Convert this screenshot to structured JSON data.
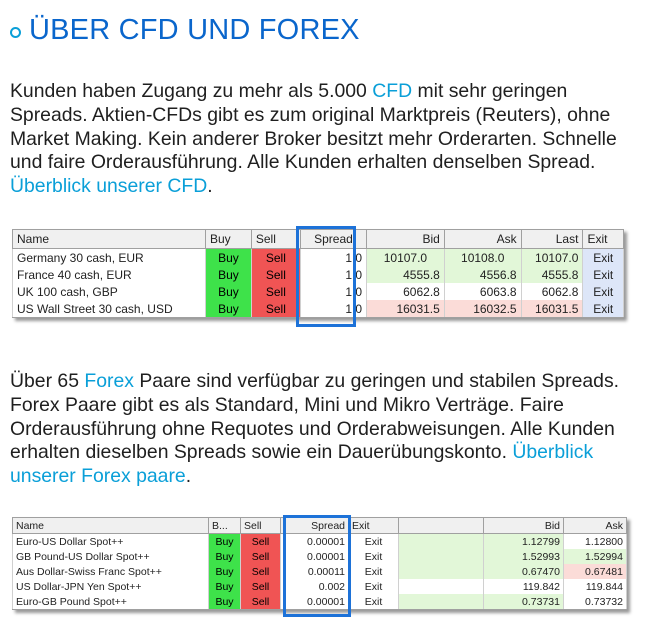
{
  "heading": "ÜBER CFD UND FOREX",
  "para1": {
    "text_before": "Kunden haben Zugang zu mehr als 5.000 ",
    "link1": "CFD",
    "text_middle": " mit sehr geringen Spreads. Aktien-CFDs gibt es zum original Marktpreis (Reuters), ohne Market Making. Kein anderer Broker besitzt mehr Orderarten. Schnelle und faire Orderausführung. Alle Kunden erhalten denselben Spread. ",
    "link2": "Überblick unserer CFD",
    "text_after": "."
  },
  "table1": {
    "headers": [
      "Name",
      "Buy",
      "Sell",
      "Spread",
      "Bid",
      "Ask",
      "Last",
      "Exit"
    ],
    "rows": [
      {
        "name": "Germany 30 cash, EUR",
        "buy": "Buy",
        "sell": "Sell",
        "spread": "1.0",
        "bid": "10107.0",
        "ask": "10108.0",
        "last": "10107.0",
        "exit": "Exit",
        "trend": "up"
      },
      {
        "name": "France 40 cash, EUR",
        "buy": "Buy",
        "sell": "Sell",
        "spread": "1.0",
        "bid": "4555.8",
        "ask": "4556.8",
        "last": "4555.8",
        "exit": "Exit",
        "trend": "up"
      },
      {
        "name": "UK 100 cash, GBP",
        "buy": "Buy",
        "sell": "Sell",
        "spread": "1.0",
        "bid": "6062.8",
        "ask": "6063.8",
        "last": "6062.8",
        "exit": "Exit",
        "trend": "neutral"
      },
      {
        "name": "US Wall Street 30 cash, USD",
        "buy": "Buy",
        "sell": "Sell",
        "spread": "1.0",
        "bid": "16031.5",
        "ask": "16032.5",
        "last": "16031.5",
        "exit": "Exit",
        "trend": "down"
      }
    ]
  },
  "para2": {
    "text_before": "Über 65 ",
    "link1": "Forex",
    "text_middle": " Paare sind verfügbar zu geringen und stabilen Spreads. Forex Paare gibt es als Standard, Mini und Mikro Verträge. Faire Orderausführung ohne Requotes und Orderabweisungen. Alle Kunden erhalten dieselben Spreads sowie ein Dauerübungskonto. ",
    "link2": "Überblick unserer Forex paare",
    "text_after": "."
  },
  "table2": {
    "headers": [
      "Name",
      "B...",
      "Sell",
      "Spread",
      "Exit",
      "",
      "Bid",
      "Ask"
    ],
    "rows": [
      {
        "name": "Euro-US Dollar Spot++",
        "buy": "Buy",
        "sell": "Sell",
        "spread": "0.00001",
        "exit": "Exit",
        "bid": "1.12799",
        "ask": "1.12800",
        "bid_trend": "up",
        "ask_trend": "neutral"
      },
      {
        "name": "GB Pound-US Dollar Spot++",
        "buy": "Buy",
        "sell": "Sell",
        "spread": "0.00001",
        "exit": "Exit",
        "bid": "1.52993",
        "ask": "1.52994",
        "bid_trend": "up",
        "ask_trend": "up"
      },
      {
        "name": "Aus Dollar-Swiss Franc Spot++",
        "buy": "Buy",
        "sell": "Sell",
        "spread": "0.00011",
        "exit": "Exit",
        "bid": "0.67470",
        "ask": "0.67481",
        "bid_trend": "up",
        "ask_trend": "down"
      },
      {
        "name": "US Dollar-JPN Yen Spot++",
        "buy": "Buy",
        "sell": "Sell",
        "spread": "0.002",
        "exit": "Exit",
        "bid": "119.842",
        "ask": "119.844",
        "bid_trend": "neutral",
        "ask_trend": "neutral"
      },
      {
        "name": "Euro-GB Pound Spot++",
        "buy": "Buy",
        "sell": "Sell",
        "spread": "0.00001",
        "exit": "Exit",
        "bid": "0.73731",
        "ask": "0.73732",
        "bid_trend": "up",
        "ask_trend": "neutral"
      }
    ]
  },
  "colors": {
    "heading": "#0a66cc",
    "link": "#0a9fd8",
    "buy": "#3ee24a",
    "sell": "#f05454",
    "exit": "#dde6f8",
    "highlight": "#1d72d8",
    "up": "#e2f7d8",
    "down": "#fbdcd8"
  }
}
